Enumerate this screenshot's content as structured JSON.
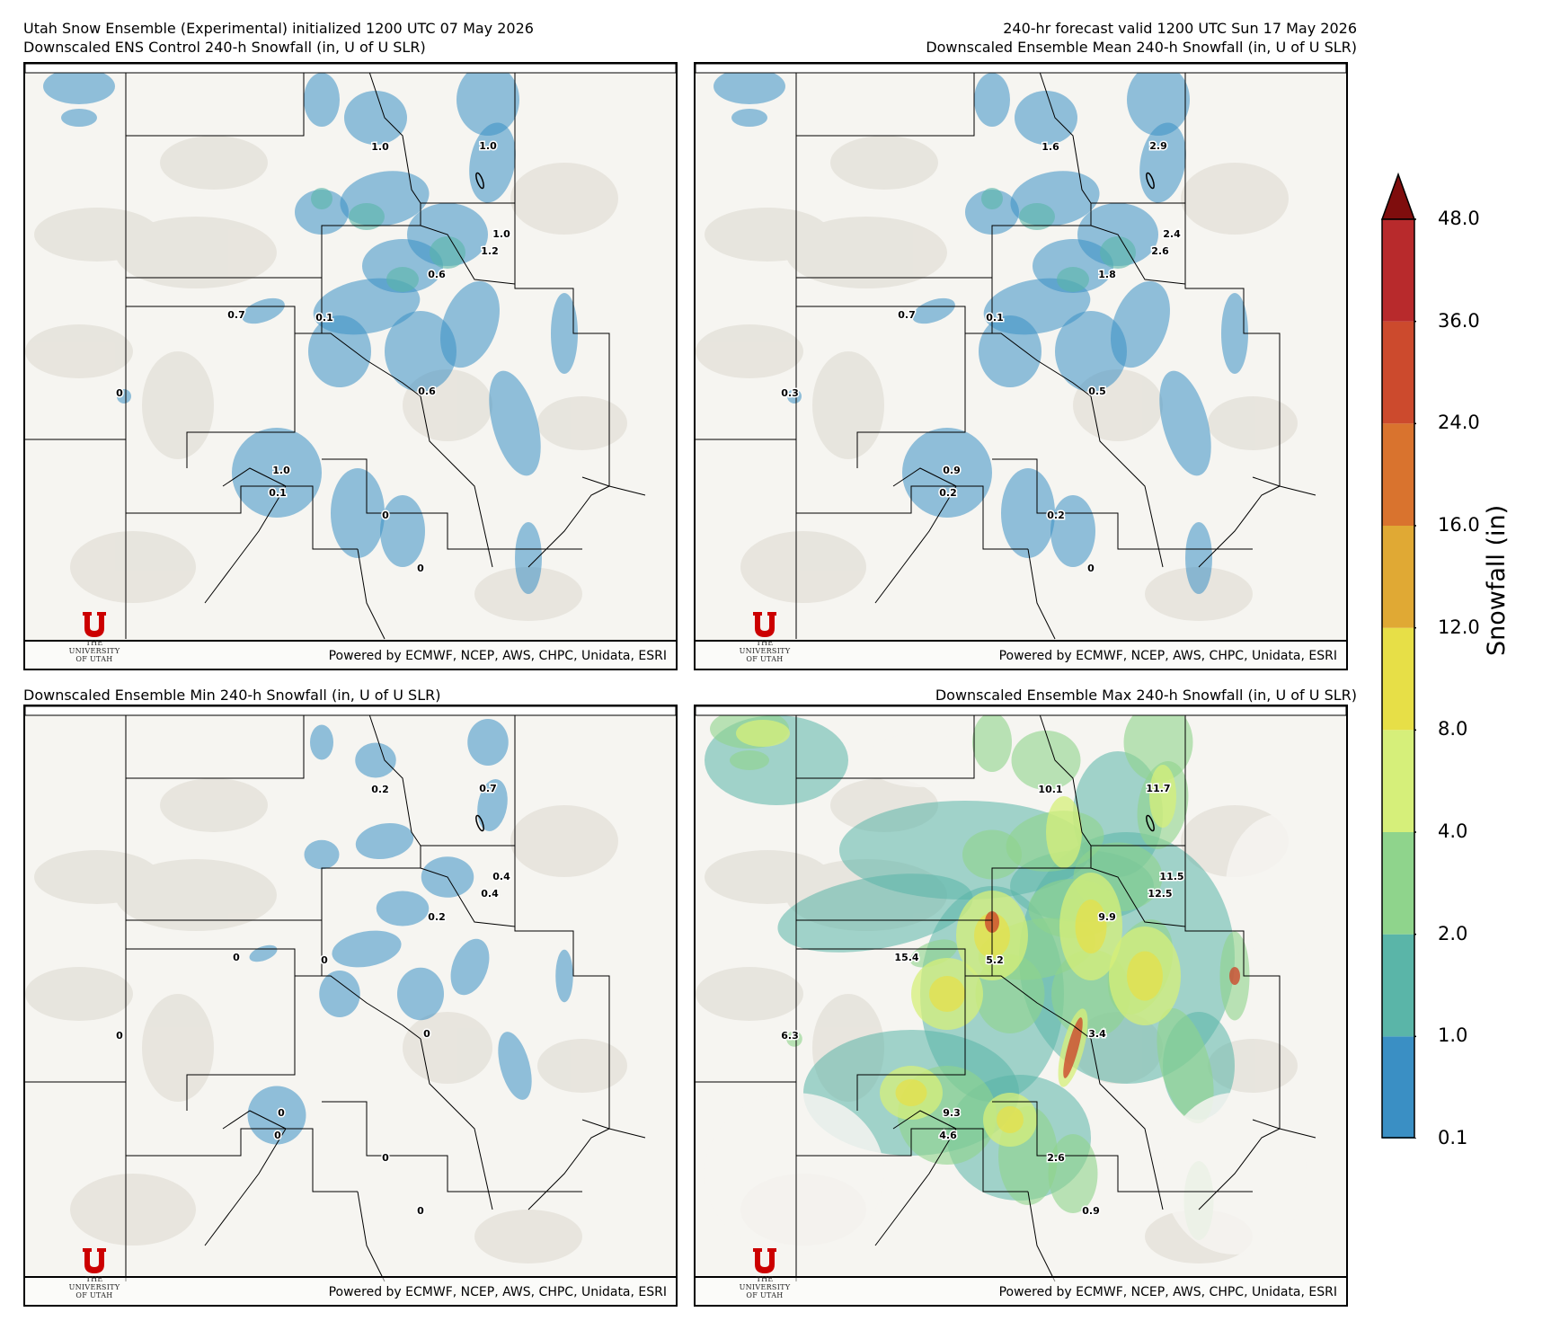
{
  "header": {
    "left_line1": "Utah Snow Ensemble (Experimental) initialized 1200 UTC 07 May 2026",
    "left_line2": "Downscaled ENS Control 240-h Snowfall (in, U of U SLR)",
    "right_line1": "240-hr forecast valid 1200 UTC Sun 17 May 2026",
    "right_line2": "Downscaled Ensemble Mean 240-h Snowfall (in, U of U SLR)",
    "bottom_left_title": "Downscaled Ensemble Min 240-h Snowfall (in, U of U SLR)",
    "bottom_right_title": "Downscaled Ensemble Max 240-h Snowfall (in, U of U SLR)"
  },
  "credit": "Powered by ECMWF, NCEP, AWS, CHPC, Unidata, ESRI",
  "logo": {
    "line1": "THE",
    "line2": "UNIVERSITY",
    "line3": "OF UTAH"
  },
  "colorbar": {
    "title": "Snowfall (in)",
    "ticks": [
      "0.1",
      "1.0",
      "2.0",
      "4.0",
      "8.0",
      "12.0",
      "16.0",
      "24.0",
      "36.0",
      "48.0"
    ],
    "colors": [
      "#3a8fc4",
      "#5ab5a8",
      "#8fd48c",
      "#d6ef7a",
      "#e7df47",
      "#e0a934",
      "#d9732e",
      "#cc4a2d",
      "#b82a2c"
    ],
    "extend_color": "#7f0d0d"
  },
  "panels": {
    "control": {
      "labels": [
        "1.0",
        "1.0",
        "1.0",
        "1.2",
        "0.6",
        "0.7",
        "0.1",
        "0",
        "0.6",
        "1.0",
        "0.1",
        "0",
        "0"
      ],
      "coverage": "light"
    },
    "mean": {
      "labels": [
        "1.6",
        "2.9",
        "2.4",
        "2.6",
        "1.8",
        "0.7",
        "0.1",
        "0.3",
        "0.5",
        "0.9",
        "0.2",
        "0.2",
        "0"
      ],
      "coverage": "light"
    },
    "min": {
      "labels": [
        "0.2",
        "0.7",
        "0.4",
        "0.4",
        "0.2",
        "0",
        "0",
        "0",
        "0",
        "0",
        "0",
        "0",
        "0"
      ],
      "coverage": "minimal"
    },
    "max": {
      "labels": [
        "10.1",
        "11.7",
        "11.5",
        "12.5",
        "9.9",
        "15.4",
        "5.2",
        "6.3",
        "3.4",
        "9.3",
        "4.6",
        "2.6",
        "0.9"
      ],
      "coverage": "heavy"
    }
  }
}
